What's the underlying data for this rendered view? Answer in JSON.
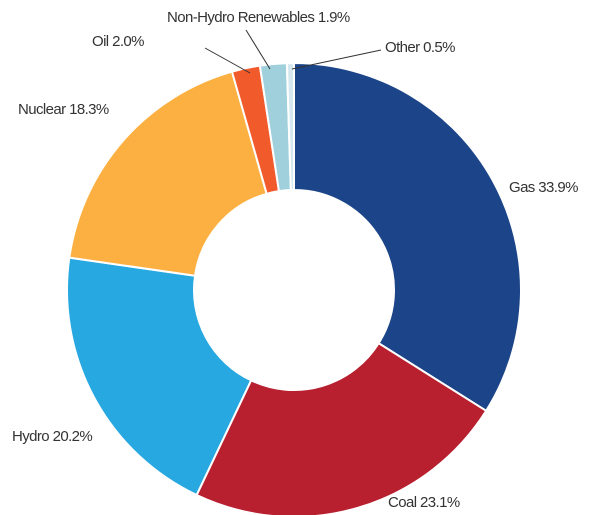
{
  "chart_data": {
    "type": "pie",
    "donut": true,
    "categories": [
      "Gas",
      "Coal",
      "Hydro",
      "Nuclear",
      "Oil",
      "Non-Hydro Renewables",
      "Other"
    ],
    "values": [
      33.9,
      23.1,
      20.2,
      18.3,
      2.0,
      1.9,
      0.5
    ],
    "value_labels": [
      "33.9%",
      "23.1%",
      "20.2%",
      "18.3%",
      "2.0%",
      "1.9%",
      "0.5%"
    ],
    "colors": [
      "#1b4588",
      "#b81f2f",
      "#27a8e0",
      "#fbb041",
      "#f15a2a",
      "#9fd0dc",
      "#d6e8ef"
    ]
  }
}
